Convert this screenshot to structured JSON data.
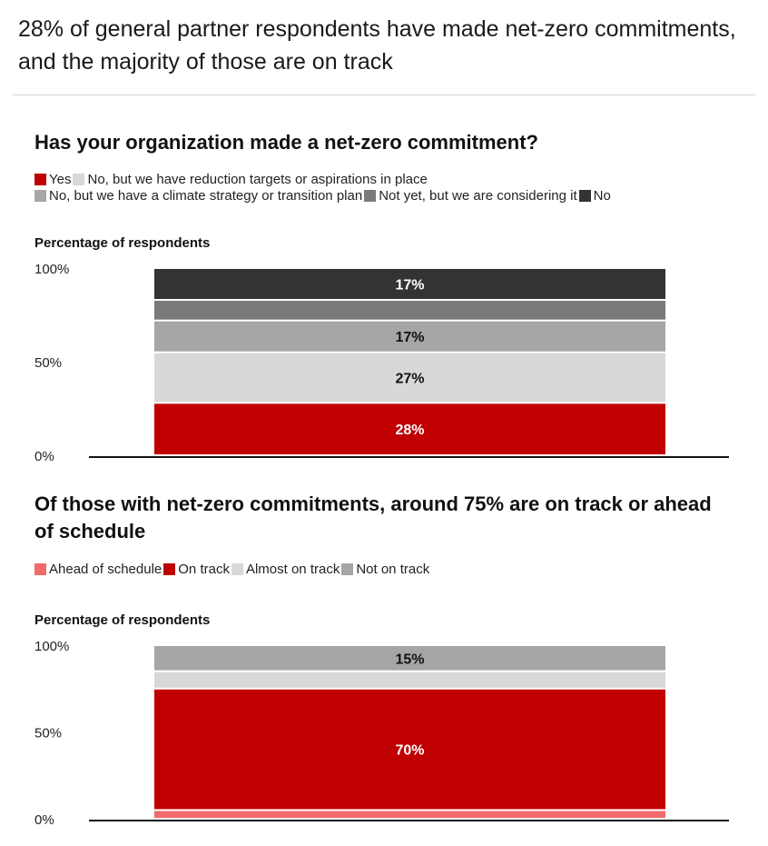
{
  "headline": "28% of general partner respondents have made net-zero commitments, and the majority of those are on track",
  "chart_data": [
    {
      "type": "bar",
      "stacked": true,
      "title": "Has your organization made a net-zero commitment?",
      "ylabel": "Percentage of respondents",
      "ylim": [
        0,
        100
      ],
      "yticks": [
        "0%",
        "50%",
        "100%"
      ],
      "categories": [
        ""
      ],
      "series": [
        {
          "name": "Yes",
          "values": [
            28
          ],
          "label": "28%",
          "color": "#c00000",
          "label_color": "#ffffff"
        },
        {
          "name": "No, but we have reduction targets or aspirations in place",
          "values": [
            27
          ],
          "label": "27%",
          "color": "#d8d8d8",
          "label_color": "#111111"
        },
        {
          "name": "No, but we have a climate strategy or transition plan",
          "values": [
            17
          ],
          "label": "17%",
          "color": "#a6a6a6",
          "label_color": "#111111"
        },
        {
          "name": "Not yet, but we are considering it",
          "values": [
            11
          ],
          "label": "",
          "color": "#7a7a7a",
          "label_color": "#ffffff"
        },
        {
          "name": "No",
          "values": [
            17
          ],
          "label": "17%",
          "color": "#333333",
          "label_color": "#ffffff"
        }
      ],
      "legend_rows": [
        [
          0,
          1
        ],
        [
          2,
          3,
          4
        ]
      ],
      "legend_position": "top"
    },
    {
      "type": "bar",
      "stacked": true,
      "title": "Of those with net-zero commitments, around 75% are on track or ahead of schedule",
      "ylabel": "Percentage of respondents",
      "ylim": [
        0,
        100
      ],
      "yticks": [
        "0%",
        "50%",
        "100%"
      ],
      "categories": [
        ""
      ],
      "series": [
        {
          "name": "Ahead of schedule",
          "values": [
            5
          ],
          "label": "",
          "color": "#f26b6b",
          "label_color": "#111111"
        },
        {
          "name": "On track",
          "values": [
            70
          ],
          "label": "70%",
          "color": "#c00000",
          "label_color": "#ffffff"
        },
        {
          "name": "Almost on track",
          "values": [
            10
          ],
          "label": "",
          "color": "#d8d8d8",
          "label_color": "#111111"
        },
        {
          "name": "Not on track",
          "values": [
            15
          ],
          "label": "15%",
          "color": "#a6a6a6",
          "label_color": "#111111"
        }
      ],
      "legend_rows": [
        [
          0,
          1,
          2,
          3
        ]
      ],
      "legend_position": "top"
    }
  ]
}
